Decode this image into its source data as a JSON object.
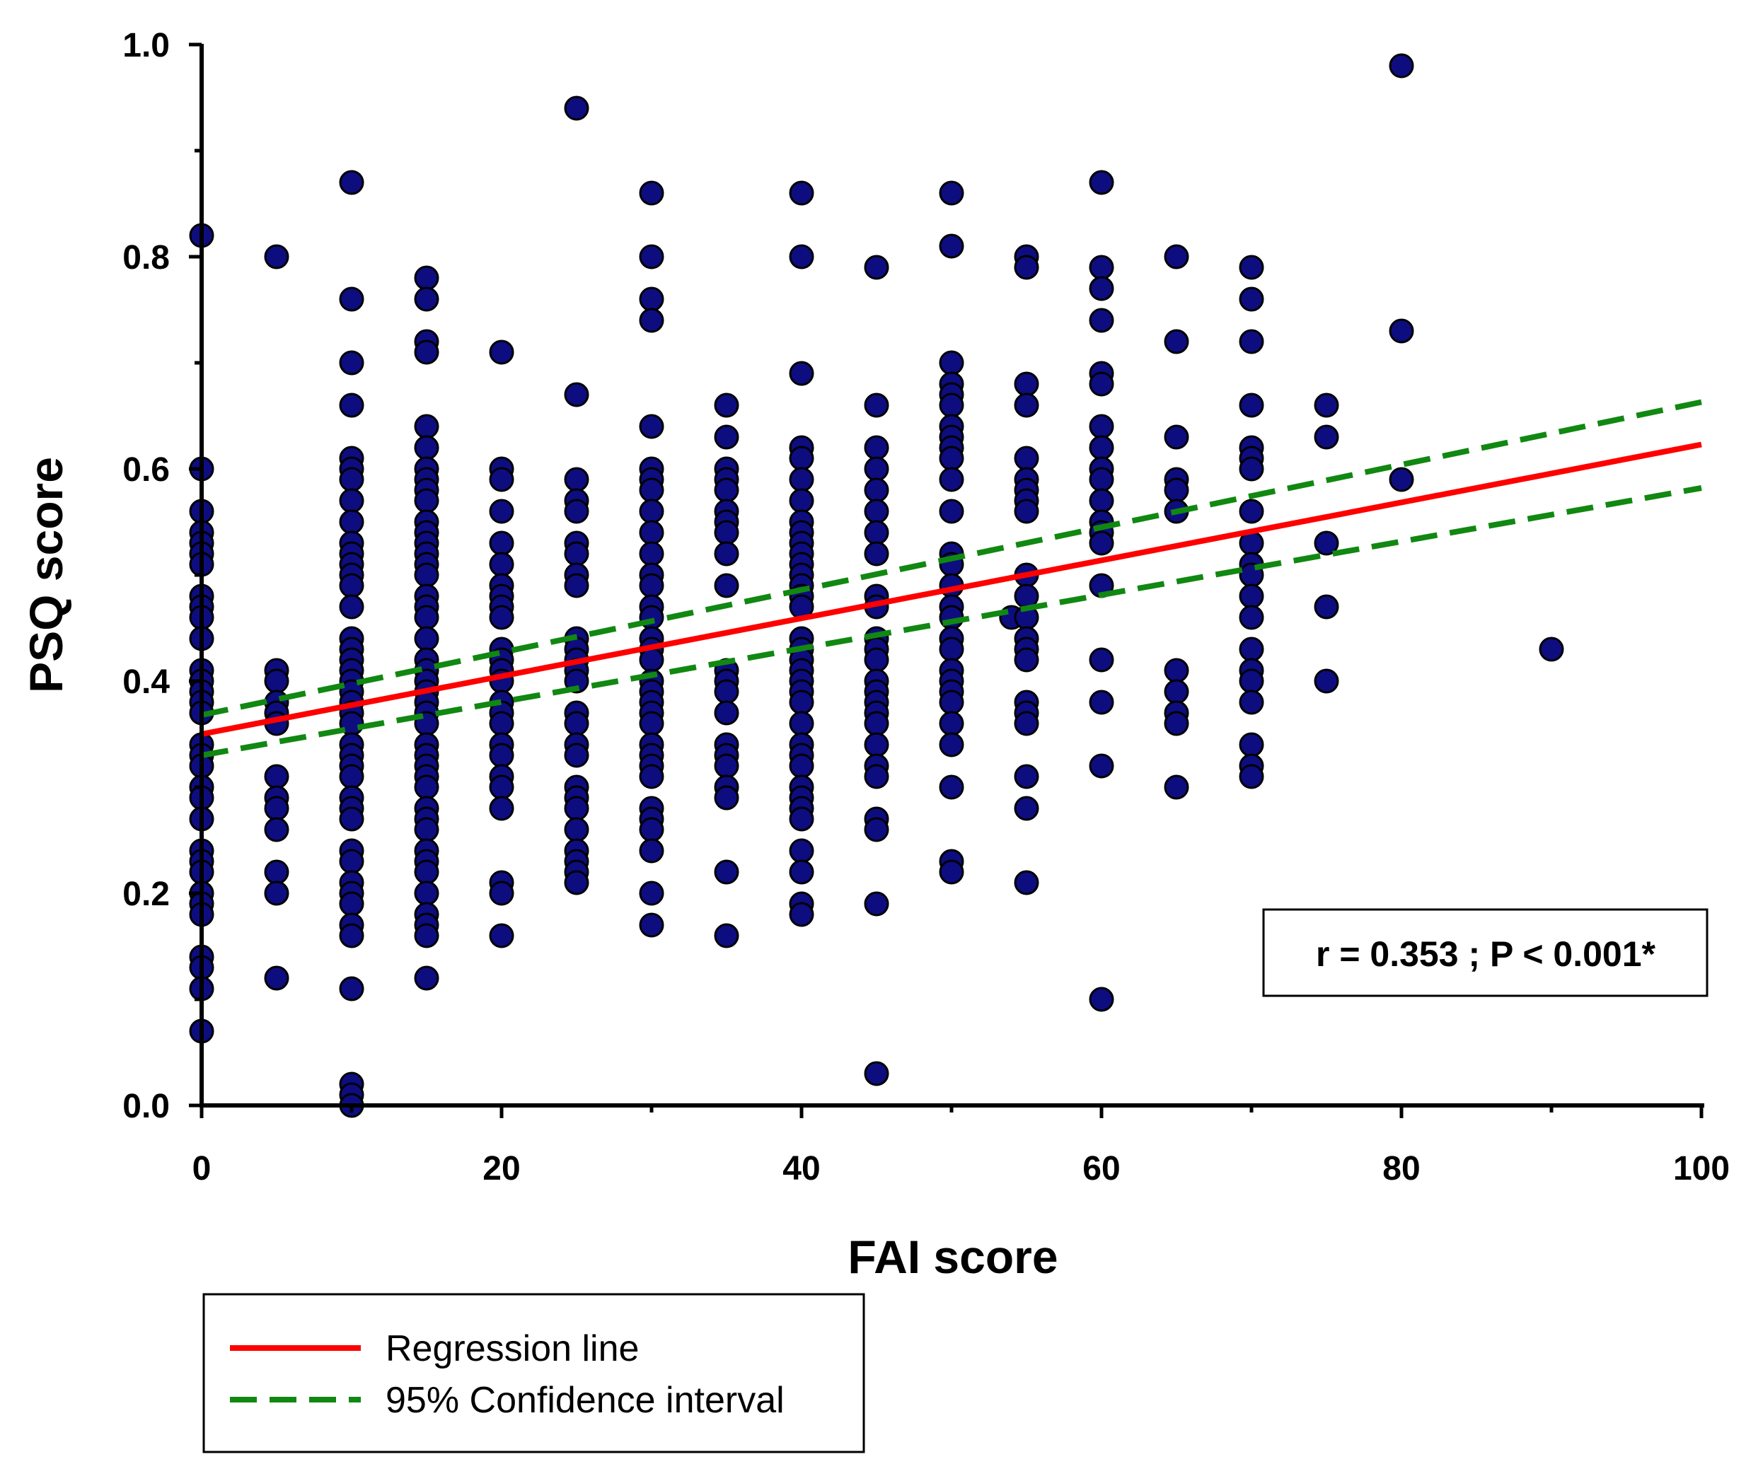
{
  "chart_data": {
    "type": "scatter",
    "xlabel": "FAI score",
    "ylabel": "PSQ score",
    "xlim": [
      0,
      100
    ],
    "ylim": [
      0,
      1.0
    ],
    "x_ticks": [
      "0",
      "20",
      "40",
      "60",
      "80",
      "100"
    ],
    "y_ticks": [
      "0.0",
      "0.2",
      "0.4",
      "0.6",
      "0.8",
      "1.0"
    ],
    "marker_color": "#0d0d80",
    "points": [
      [
        0,
        0.82
      ],
      [
        0,
        0.6
      ],
      [
        0,
        0.56
      ],
      [
        0,
        0.54
      ],
      [
        0,
        0.53
      ],
      [
        0,
        0.52
      ],
      [
        0,
        0.51
      ],
      [
        0,
        0.48
      ],
      [
        0,
        0.47
      ],
      [
        0,
        0.46
      ],
      [
        0,
        0.44
      ],
      [
        0,
        0.41
      ],
      [
        0,
        0.4
      ],
      [
        0,
        0.39
      ],
      [
        0,
        0.38
      ],
      [
        0,
        0.37
      ],
      [
        0,
        0.34
      ],
      [
        0,
        0.33
      ],
      [
        0,
        0.32
      ],
      [
        0,
        0.3
      ],
      [
        0,
        0.29
      ],
      [
        0,
        0.27
      ],
      [
        0,
        0.24
      ],
      [
        0,
        0.23
      ],
      [
        0,
        0.22
      ],
      [
        0,
        0.2
      ],
      [
        0,
        0.19
      ],
      [
        0,
        0.18
      ],
      [
        0,
        0.14
      ],
      [
        0,
        0.13
      ],
      [
        0,
        0.11
      ],
      [
        0,
        0.07
      ],
      [
        5,
        0.8
      ],
      [
        5,
        0.41
      ],
      [
        5,
        0.4
      ],
      [
        5,
        0.38
      ],
      [
        5,
        0.37
      ],
      [
        5,
        0.36
      ],
      [
        5,
        0.31
      ],
      [
        5,
        0.29
      ],
      [
        5,
        0.28
      ],
      [
        5,
        0.26
      ],
      [
        5,
        0.22
      ],
      [
        5,
        0.2
      ],
      [
        5,
        0.12
      ],
      [
        10,
        0.87
      ],
      [
        10,
        0.76
      ],
      [
        10,
        0.7
      ],
      [
        10,
        0.66
      ],
      [
        10,
        0.61
      ],
      [
        10,
        0.6
      ],
      [
        10,
        0.59
      ],
      [
        10,
        0.57
      ],
      [
        10,
        0.55
      ],
      [
        10,
        0.53
      ],
      [
        10,
        0.52
      ],
      [
        10,
        0.51
      ],
      [
        10,
        0.5
      ],
      [
        10,
        0.49
      ],
      [
        10,
        0.47
      ],
      [
        10,
        0.44
      ],
      [
        10,
        0.43
      ],
      [
        10,
        0.42
      ],
      [
        10,
        0.41
      ],
      [
        10,
        0.4
      ],
      [
        10,
        0.39
      ],
      [
        10,
        0.38
      ],
      [
        10,
        0.37
      ],
      [
        10,
        0.36
      ],
      [
        10,
        0.34
      ],
      [
        10,
        0.33
      ],
      [
        10,
        0.32
      ],
      [
        10,
        0.31
      ],
      [
        10,
        0.29
      ],
      [
        10,
        0.28
      ],
      [
        10,
        0.27
      ],
      [
        10,
        0.24
      ],
      [
        10,
        0.23
      ],
      [
        10,
        0.21
      ],
      [
        10,
        0.2
      ],
      [
        10,
        0.19
      ],
      [
        10,
        0.17
      ],
      [
        10,
        0.16
      ],
      [
        10,
        0.11
      ],
      [
        10,
        0.02
      ],
      [
        10,
        0.01
      ],
      [
        10,
        0.0
      ],
      [
        15,
        0.78
      ],
      [
        15,
        0.76
      ],
      [
        15,
        0.72
      ],
      [
        15,
        0.71
      ],
      [
        15,
        0.64
      ],
      [
        15,
        0.62
      ],
      [
        15,
        0.6
      ],
      [
        15,
        0.59
      ],
      [
        15,
        0.58
      ],
      [
        15,
        0.57
      ],
      [
        15,
        0.55
      ],
      [
        15,
        0.54
      ],
      [
        15,
        0.53
      ],
      [
        15,
        0.52
      ],
      [
        15,
        0.51
      ],
      [
        15,
        0.5
      ],
      [
        15,
        0.48
      ],
      [
        15,
        0.47
      ],
      [
        15,
        0.46
      ],
      [
        15,
        0.44
      ],
      [
        15,
        0.42
      ],
      [
        15,
        0.41
      ],
      [
        15,
        0.4
      ],
      [
        15,
        0.39
      ],
      [
        15,
        0.38
      ],
      [
        15,
        0.37
      ],
      [
        15,
        0.36
      ],
      [
        15,
        0.34
      ],
      [
        15,
        0.33
      ],
      [
        15,
        0.32
      ],
      [
        15,
        0.31
      ],
      [
        15,
        0.3
      ],
      [
        15,
        0.28
      ],
      [
        15,
        0.27
      ],
      [
        15,
        0.26
      ],
      [
        15,
        0.24
      ],
      [
        15,
        0.23
      ],
      [
        15,
        0.22
      ],
      [
        15,
        0.2
      ],
      [
        15,
        0.18
      ],
      [
        15,
        0.17
      ],
      [
        15,
        0.16
      ],
      [
        15,
        0.12
      ],
      [
        20,
        0.71
      ],
      [
        20,
        0.6
      ],
      [
        20,
        0.59
      ],
      [
        20,
        0.56
      ],
      [
        20,
        0.53
      ],
      [
        20,
        0.51
      ],
      [
        20,
        0.49
      ],
      [
        20,
        0.48
      ],
      [
        20,
        0.47
      ],
      [
        20,
        0.46
      ],
      [
        20,
        0.43
      ],
      [
        20,
        0.42
      ],
      [
        20,
        0.41
      ],
      [
        20,
        0.4
      ],
      [
        20,
        0.38
      ],
      [
        20,
        0.37
      ],
      [
        20,
        0.36
      ],
      [
        20,
        0.34
      ],
      [
        20,
        0.33
      ],
      [
        20,
        0.31
      ],
      [
        20,
        0.3
      ],
      [
        20,
        0.28
      ],
      [
        20,
        0.21
      ],
      [
        20,
        0.2
      ],
      [
        20,
        0.16
      ],
      [
        25,
        0.94
      ],
      [
        25,
        0.67
      ],
      [
        25,
        0.59
      ],
      [
        25,
        0.57
      ],
      [
        25,
        0.56
      ],
      [
        25,
        0.53
      ],
      [
        25,
        0.52
      ],
      [
        25,
        0.5
      ],
      [
        25,
        0.49
      ],
      [
        25,
        0.44
      ],
      [
        25,
        0.43
      ],
      [
        25,
        0.42
      ],
      [
        25,
        0.41
      ],
      [
        25,
        0.4
      ],
      [
        25,
        0.37
      ],
      [
        25,
        0.36
      ],
      [
        25,
        0.34
      ],
      [
        25,
        0.33
      ],
      [
        25,
        0.3
      ],
      [
        25,
        0.29
      ],
      [
        25,
        0.28
      ],
      [
        25,
        0.26
      ],
      [
        25,
        0.24
      ],
      [
        25,
        0.23
      ],
      [
        25,
        0.22
      ],
      [
        25,
        0.21
      ],
      [
        30,
        0.86
      ],
      [
        30,
        0.8
      ],
      [
        30,
        0.76
      ],
      [
        30,
        0.74
      ],
      [
        30,
        0.64
      ],
      [
        30,
        0.6
      ],
      [
        30,
        0.59
      ],
      [
        30,
        0.58
      ],
      [
        30,
        0.56
      ],
      [
        30,
        0.54
      ],
      [
        30,
        0.52
      ],
      [
        30,
        0.5
      ],
      [
        30,
        0.49
      ],
      [
        30,
        0.47
      ],
      [
        30,
        0.46
      ],
      [
        30,
        0.44
      ],
      [
        30,
        0.43
      ],
      [
        30,
        0.42
      ],
      [
        30,
        0.4
      ],
      [
        30,
        0.39
      ],
      [
        30,
        0.38
      ],
      [
        30,
        0.37
      ],
      [
        30,
        0.36
      ],
      [
        30,
        0.34
      ],
      [
        30,
        0.33
      ],
      [
        30,
        0.32
      ],
      [
        30,
        0.31
      ],
      [
        30,
        0.28
      ],
      [
        30,
        0.27
      ],
      [
        30,
        0.26
      ],
      [
        30,
        0.24
      ],
      [
        30,
        0.2
      ],
      [
        30,
        0.17
      ],
      [
        35,
        0.66
      ],
      [
        35,
        0.63
      ],
      [
        35,
        0.6
      ],
      [
        35,
        0.59
      ],
      [
        35,
        0.58
      ],
      [
        35,
        0.56
      ],
      [
        35,
        0.55
      ],
      [
        35,
        0.54
      ],
      [
        35,
        0.52
      ],
      [
        35,
        0.49
      ],
      [
        35,
        0.41
      ],
      [
        35,
        0.4
      ],
      [
        35,
        0.39
      ],
      [
        35,
        0.37
      ],
      [
        35,
        0.34
      ],
      [
        35,
        0.33
      ],
      [
        35,
        0.32
      ],
      [
        35,
        0.3
      ],
      [
        35,
        0.29
      ],
      [
        35,
        0.22
      ],
      [
        35,
        0.16
      ],
      [
        40,
        0.86
      ],
      [
        40,
        0.8
      ],
      [
        40,
        0.69
      ],
      [
        40,
        0.62
      ],
      [
        40,
        0.61
      ],
      [
        40,
        0.59
      ],
      [
        40,
        0.57
      ],
      [
        40,
        0.55
      ],
      [
        40,
        0.54
      ],
      [
        40,
        0.53
      ],
      [
        40,
        0.52
      ],
      [
        40,
        0.51
      ],
      [
        40,
        0.5
      ],
      [
        40,
        0.49
      ],
      [
        40,
        0.48
      ],
      [
        40,
        0.47
      ],
      [
        40,
        0.44
      ],
      [
        40,
        0.43
      ],
      [
        40,
        0.42
      ],
      [
        40,
        0.41
      ],
      [
        40,
        0.4
      ],
      [
        40,
        0.39
      ],
      [
        40,
        0.38
      ],
      [
        40,
        0.36
      ],
      [
        40,
        0.34
      ],
      [
        40,
        0.33
      ],
      [
        40,
        0.32
      ],
      [
        40,
        0.3
      ],
      [
        40,
        0.29
      ],
      [
        40,
        0.28
      ],
      [
        40,
        0.27
      ],
      [
        40,
        0.24
      ],
      [
        40,
        0.22
      ],
      [
        40,
        0.19
      ],
      [
        40,
        0.18
      ],
      [
        45,
        0.79
      ],
      [
        45,
        0.66
      ],
      [
        45,
        0.62
      ],
      [
        45,
        0.6
      ],
      [
        45,
        0.58
      ],
      [
        45,
        0.56
      ],
      [
        45,
        0.54
      ],
      [
        45,
        0.52
      ],
      [
        45,
        0.48
      ],
      [
        45,
        0.47
      ],
      [
        45,
        0.44
      ],
      [
        45,
        0.43
      ],
      [
        45,
        0.42
      ],
      [
        45,
        0.4
      ],
      [
        45,
        0.39
      ],
      [
        45,
        0.38
      ],
      [
        45,
        0.37
      ],
      [
        45,
        0.36
      ],
      [
        45,
        0.34
      ],
      [
        45,
        0.32
      ],
      [
        45,
        0.31
      ],
      [
        45,
        0.27
      ],
      [
        45,
        0.26
      ],
      [
        45,
        0.19
      ],
      [
        45,
        0.03
      ],
      [
        50,
        0.86
      ],
      [
        50,
        0.81
      ],
      [
        50,
        0.7
      ],
      [
        50,
        0.68
      ],
      [
        50,
        0.67
      ],
      [
        50,
        0.66
      ],
      [
        50,
        0.64
      ],
      [
        50,
        0.63
      ],
      [
        50,
        0.62
      ],
      [
        50,
        0.61
      ],
      [
        50,
        0.59
      ],
      [
        50,
        0.56
      ],
      [
        50,
        0.52
      ],
      [
        50,
        0.51
      ],
      [
        50,
        0.49
      ],
      [
        50,
        0.47
      ],
      [
        50,
        0.46
      ],
      [
        50,
        0.44
      ],
      [
        50,
        0.43
      ],
      [
        50,
        0.41
      ],
      [
        50,
        0.4
      ],
      [
        50,
        0.39
      ],
      [
        50,
        0.38
      ],
      [
        50,
        0.36
      ],
      [
        50,
        0.34
      ],
      [
        50,
        0.3
      ],
      [
        50,
        0.23
      ],
      [
        50,
        0.22
      ],
      [
        54,
        0.46
      ],
      [
        55,
        0.8
      ],
      [
        55,
        0.79
      ],
      [
        55,
        0.68
      ],
      [
        55,
        0.66
      ],
      [
        55,
        0.61
      ],
      [
        55,
        0.59
      ],
      [
        55,
        0.58
      ],
      [
        55,
        0.57
      ],
      [
        55,
        0.56
      ],
      [
        55,
        0.5
      ],
      [
        55,
        0.48
      ],
      [
        55,
        0.46
      ],
      [
        55,
        0.44
      ],
      [
        55,
        0.43
      ],
      [
        55,
        0.42
      ],
      [
        55,
        0.38
      ],
      [
        55,
        0.37
      ],
      [
        55,
        0.36
      ],
      [
        55,
        0.31
      ],
      [
        55,
        0.28
      ],
      [
        55,
        0.21
      ],
      [
        60,
        0.87
      ],
      [
        60,
        0.79
      ],
      [
        60,
        0.77
      ],
      [
        60,
        0.74
      ],
      [
        60,
        0.69
      ],
      [
        60,
        0.68
      ],
      [
        60,
        0.64
      ],
      [
        60,
        0.62
      ],
      [
        60,
        0.6
      ],
      [
        60,
        0.59
      ],
      [
        60,
        0.57
      ],
      [
        60,
        0.55
      ],
      [
        60,
        0.54
      ],
      [
        60,
        0.53
      ],
      [
        60,
        0.49
      ],
      [
        60,
        0.42
      ],
      [
        60,
        0.38
      ],
      [
        60,
        0.32
      ],
      [
        60,
        0.1
      ],
      [
        65,
        0.8
      ],
      [
        65,
        0.72
      ],
      [
        65,
        0.63
      ],
      [
        65,
        0.59
      ],
      [
        65,
        0.58
      ],
      [
        65,
        0.56
      ],
      [
        65,
        0.41
      ],
      [
        65,
        0.39
      ],
      [
        65,
        0.37
      ],
      [
        65,
        0.36
      ],
      [
        65,
        0.3
      ],
      [
        70,
        0.79
      ],
      [
        70,
        0.76
      ],
      [
        70,
        0.72
      ],
      [
        70,
        0.66
      ],
      [
        70,
        0.62
      ],
      [
        70,
        0.61
      ],
      [
        70,
        0.6
      ],
      [
        70,
        0.56
      ],
      [
        70,
        0.53
      ],
      [
        70,
        0.51
      ],
      [
        70,
        0.5
      ],
      [
        70,
        0.48
      ],
      [
        70,
        0.46
      ],
      [
        70,
        0.43
      ],
      [
        70,
        0.41
      ],
      [
        70,
        0.4
      ],
      [
        70,
        0.38
      ],
      [
        70,
        0.34
      ],
      [
        70,
        0.32
      ],
      [
        70,
        0.31
      ],
      [
        75,
        0.66
      ],
      [
        75,
        0.63
      ],
      [
        75,
        0.53
      ],
      [
        75,
        0.47
      ],
      [
        75,
        0.4
      ],
      [
        80,
        0.98
      ],
      [
        80,
        0.73
      ],
      [
        80,
        0.59
      ],
      [
        90,
        0.43
      ]
    ],
    "regression_line": {
      "x": [
        0,
        100
      ],
      "y": [
        0.35,
        0.623
      ],
      "color": "#ff0000"
    },
    "ci_upper": {
      "x": [
        0,
        100
      ],
      "y": [
        0.368,
        0.663
      ],
      "color": "#118811"
    },
    "ci_lower": {
      "x": [
        0,
        100
      ],
      "y": [
        0.33,
        0.582
      ],
      "color": "#118811"
    },
    "annotation": "r = 0.353 ; P < 0.001*",
    "legend": [
      {
        "label": "Regression line",
        "style": "solid",
        "color": "#ff0000"
      },
      {
        "label": "95% Confidence interval",
        "style": "dashed",
        "color": "#118811"
      }
    ]
  }
}
